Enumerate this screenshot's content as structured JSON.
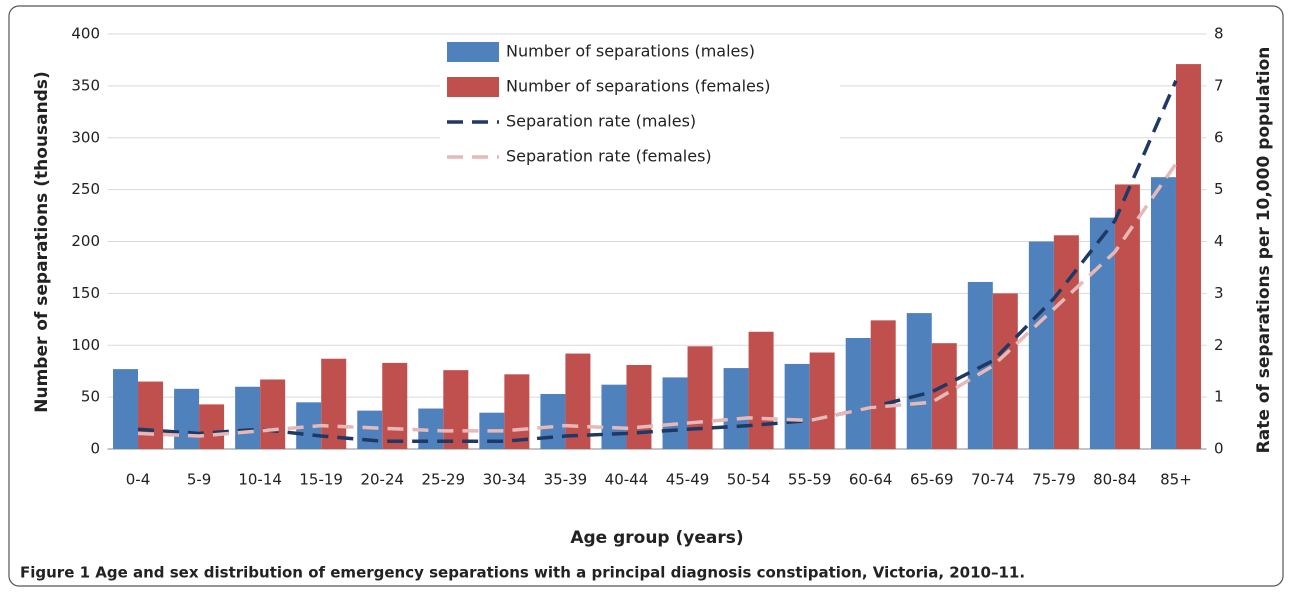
{
  "chart_data": {
    "type": "bar",
    "caption": "Figure 1 Age and sex distribution of emergency separations with a principal diagnosis constipation, Victoria, 2010–11.",
    "x_label": "Age group (years)",
    "y_label": "Number of separations (thousands)",
    "y2_label": "Rate of separations per 10,000 population",
    "categories": [
      "0-4",
      "5-9",
      "10-14",
      "15-19",
      "20-24",
      "25-29",
      "30-34",
      "35-39",
      "40-44",
      "45-49",
      "50-54",
      "55-59",
      "60-64",
      "65-69",
      "70-74",
      "75-79",
      "80-84",
      "85+"
    ],
    "series": [
      {
        "name": "Number of separations (males)",
        "type": "bar",
        "color": "#4f81bd",
        "values": [
          77,
          58,
          60,
          45,
          37,
          39,
          35,
          53,
          62,
          69,
          78,
          82,
          107,
          131,
          161,
          200,
          223,
          262
        ]
      },
      {
        "name": "Number of separations (females)",
        "type": "bar",
        "color": "#c0504d",
        "values": [
          65,
          43,
          67,
          87,
          83,
          76,
          72,
          92,
          81,
          99,
          113,
          93,
          124,
          102,
          150,
          206,
          255,
          371
        ]
      },
      {
        "name": "Separation rate (males)",
        "type": "line",
        "axis": "y2",
        "color": "#1f3864",
        "values": [
          0.38,
          0.3,
          0.38,
          0.25,
          0.15,
          0.15,
          0.15,
          0.25,
          0.3,
          0.38,
          0.45,
          0.55,
          0.8,
          1.1,
          1.7,
          2.9,
          4.4,
          7.1
        ]
      },
      {
        "name": "Separation rate (females)",
        "type": "line",
        "axis": "y2",
        "color": "#e6b9b8",
        "values": [
          0.3,
          0.25,
          0.35,
          0.45,
          0.4,
          0.35,
          0.35,
          0.45,
          0.4,
          0.5,
          0.6,
          0.55,
          0.8,
          0.9,
          1.6,
          2.7,
          3.8,
          5.5
        ]
      }
    ],
    "ylim": [
      0,
      400
    ],
    "yticks": [
      0,
      50,
      100,
      150,
      200,
      250,
      300,
      350,
      400
    ],
    "y2lim": [
      0,
      8
    ],
    "y2ticks": [
      0,
      1,
      2,
      3,
      4,
      5,
      6,
      7,
      8
    ],
    "grid": true,
    "legend": "top"
  }
}
